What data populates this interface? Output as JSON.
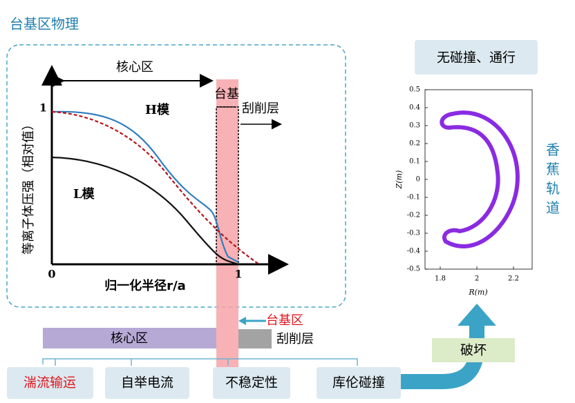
{
  "title": "台基区物理",
  "profile": {
    "y_axis_label": "等离子体压强（相对值）",
    "x_axis_label": "归一化半径r/a",
    "x_tick_start": "0",
    "x_tick_end": "1",
    "y_tick": "1",
    "core_label": "核心区",
    "pedestal_label": "台基",
    "sol_label": "刮削层",
    "h_mode_label": "H模",
    "l_mode_label": "L模"
  },
  "regions": {
    "core": "核心区",
    "pedestal": "台基区",
    "sol": "刮削层"
  },
  "topics": [
    "湍流输运",
    "自举电流",
    "不稳定性",
    "库伦碰撞"
  ],
  "disruption_label": "破坏",
  "collisionless_label": "无碰撞、通行",
  "banana_label": "香蕉轨道",
  "orbit_plot": {
    "y_axis_label": "Z(m)",
    "x_axis_label": "R(m)",
    "yticks": [
      0.5,
      0.4,
      0.3,
      0.2,
      0.1,
      0,
      -0.1,
      -0.2,
      -0.3,
      -0.4,
      -0.5
    ],
    "xticks": [
      1.8,
      2,
      2.2
    ]
  }
}
